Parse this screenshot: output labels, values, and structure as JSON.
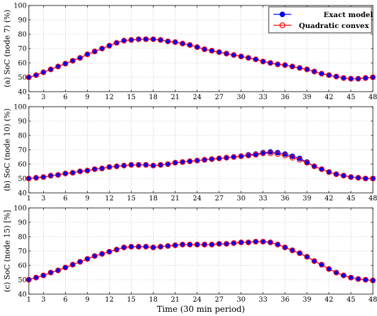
{
  "figure": {
    "xlabel": "Time (30 min period)"
  },
  "legend": {
    "entries": [
      {
        "label": "Exact model",
        "color": "#0000ff",
        "marker": "filled-circle"
      },
      {
        "label": "Quadratic convex",
        "color": "#ff0000",
        "marker": "open-circle"
      }
    ],
    "placement": "top-right"
  },
  "chart_data": [
    {
      "type": "line",
      "ylabel": "(a) SoC (node 7) (%)",
      "xlim": [
        1,
        48
      ],
      "ylim": [
        40,
        100
      ],
      "xticks": [
        1,
        3,
        6,
        9,
        12,
        15,
        18,
        21,
        24,
        27,
        30,
        33,
        36,
        39,
        42,
        45,
        48
      ],
      "yticks": [
        40,
        50,
        60,
        70,
        80,
        90,
        100
      ],
      "grid": true,
      "x": [
        1,
        2,
        3,
        4,
        5,
        6,
        7,
        8,
        9,
        10,
        11,
        12,
        13,
        14,
        15,
        16,
        17,
        18,
        19,
        20,
        21,
        22,
        23,
        24,
        25,
        26,
        27,
        28,
        29,
        30,
        31,
        32,
        33,
        34,
        35,
        36,
        37,
        38,
        39,
        40,
        41,
        42,
        43,
        44,
        45,
        46,
        47,
        48
      ],
      "series": [
        {
          "name": "Exact model",
          "values": [
            50,
            51.5,
            53.5,
            55.5,
            57.5,
            59.5,
            61.5,
            63.5,
            66,
            68,
            70,
            72,
            74,
            75.5,
            76,
            76.5,
            76.5,
            76.5,
            76,
            75,
            74.5,
            73.5,
            72.5,
            71,
            69.5,
            68.5,
            67.5,
            66.5,
            65.5,
            64.5,
            63.5,
            62.5,
            61,
            60,
            59,
            58.5,
            57.5,
            56.5,
            55.5,
            54,
            52.5,
            51.5,
            50.5,
            49.5,
            49,
            49,
            49.5,
            50
          ]
        },
        {
          "name": "Quadratic convex",
          "values": [
            50,
            51.5,
            53.5,
            55.5,
            57.5,
            59.5,
            61.5,
            63.5,
            66,
            68,
            70,
            72,
            74,
            75.5,
            76,
            76.5,
            76.5,
            76.5,
            76,
            75,
            74.5,
            73.5,
            72.5,
            71,
            69.5,
            68.5,
            67.5,
            66.5,
            65.5,
            64.5,
            63.5,
            62.5,
            61,
            60,
            59,
            58.5,
            57.5,
            56.5,
            55.5,
            54,
            52.5,
            51.5,
            50.5,
            49.5,
            49,
            49,
            49.5,
            50
          ]
        }
      ]
    },
    {
      "type": "line",
      "ylabel": "(b) SoC (node 10) (%)",
      "xlim": [
        1,
        48
      ],
      "ylim": [
        40,
        100
      ],
      "xticks": [
        1,
        3,
        6,
        9,
        12,
        15,
        18,
        21,
        24,
        27,
        30,
        33,
        36,
        39,
        42,
        45,
        48
      ],
      "yticks": [
        40,
        50,
        60,
        70,
        80,
        90,
        100
      ],
      "grid": true,
      "x": [
        1,
        2,
        3,
        4,
        5,
        6,
        7,
        8,
        9,
        10,
        11,
        12,
        13,
        14,
        15,
        16,
        17,
        18,
        19,
        20,
        21,
        22,
        23,
        24,
        25,
        26,
        27,
        28,
        29,
        30,
        31,
        32,
        33,
        34,
        35,
        36,
        37,
        38,
        39,
        40,
        41,
        42,
        43,
        44,
        45,
        46,
        47,
        48
      ],
      "series": [
        {
          "name": "Exact model",
          "values": [
            50,
            50.5,
            51,
            52,
            52.5,
            53.5,
            54,
            55,
            55.5,
            56.5,
            57,
            58,
            58.5,
            59,
            59.5,
            59.5,
            59.5,
            59,
            59.5,
            60,
            61,
            61.5,
            62,
            62.5,
            63,
            63.5,
            64,
            64.5,
            65,
            65.5,
            66.5,
            67,
            68,
            68.5,
            68,
            67,
            65.5,
            64,
            61.5,
            58.5,
            56.5,
            54.5,
            53,
            52,
            51,
            50.5,
            50,
            50
          ]
        },
        {
          "name": "Quadratic convex",
          "values": [
            50,
            50.5,
            51,
            52,
            52.5,
            53.5,
            54,
            55,
            55.5,
            56.5,
            57,
            58,
            58.5,
            59,
            59.5,
            59.5,
            59.5,
            59,
            59.5,
            60,
            61,
            61.5,
            62,
            62.5,
            63,
            63.5,
            64,
            64.5,
            65,
            65.5,
            66,
            66.5,
            67.5,
            67.5,
            67,
            66,
            64.5,
            63,
            61,
            58.5,
            56.5,
            54.5,
            53,
            52,
            51,
            50.5,
            50,
            50
          ]
        }
      ]
    },
    {
      "type": "line",
      "ylabel": "(c) SoC (node 15) [%]",
      "xlim": [
        1,
        48
      ],
      "ylim": [
        40,
        100
      ],
      "xticks": [
        1,
        3,
        6,
        9,
        12,
        15,
        18,
        21,
        24,
        27,
        30,
        33,
        36,
        39,
        42,
        45,
        48
      ],
      "yticks": [
        40,
        50,
        60,
        70,
        80,
        90,
        100
      ],
      "grid": true,
      "x": [
        1,
        2,
        3,
        4,
        5,
        6,
        7,
        8,
        9,
        10,
        11,
        12,
        13,
        14,
        15,
        16,
        17,
        18,
        19,
        20,
        21,
        22,
        23,
        24,
        25,
        26,
        27,
        28,
        29,
        30,
        31,
        32,
        33,
        34,
        35,
        36,
        37,
        38,
        39,
        40,
        41,
        42,
        43,
        44,
        45,
        46,
        47,
        48
      ],
      "series": [
        {
          "name": "Exact model",
          "values": [
            50,
            51.5,
            53,
            55,
            56.5,
            58.5,
            60.5,
            62.5,
            64.5,
            66.5,
            68,
            69.5,
            71,
            72.5,
            73,
            73,
            73,
            72.5,
            73,
            73.5,
            74,
            74.5,
            74.5,
            74.5,
            74.5,
            74.5,
            75,
            75,
            75.5,
            76,
            76,
            76.5,
            76.5,
            76,
            74.5,
            72.5,
            70.5,
            68.5,
            66,
            63,
            60.5,
            57.5,
            55,
            53,
            51.5,
            50.5,
            50,
            49.5
          ]
        },
        {
          "name": "Quadratic convex",
          "values": [
            50,
            51.5,
            53,
            55,
            56.5,
            58.5,
            60.5,
            62.5,
            64.5,
            66.5,
            68,
            69.5,
            71,
            72.5,
            73,
            73,
            73,
            72.5,
            73,
            73.5,
            74,
            74.5,
            74.5,
            74.5,
            74.5,
            74.5,
            75,
            75,
            75.5,
            76,
            76,
            76.5,
            76.5,
            76,
            74.5,
            72.5,
            70.5,
            68.5,
            66,
            63,
            60.5,
            57.5,
            55,
            53,
            51.5,
            50.5,
            50,
            49.5
          ]
        }
      ]
    }
  ]
}
